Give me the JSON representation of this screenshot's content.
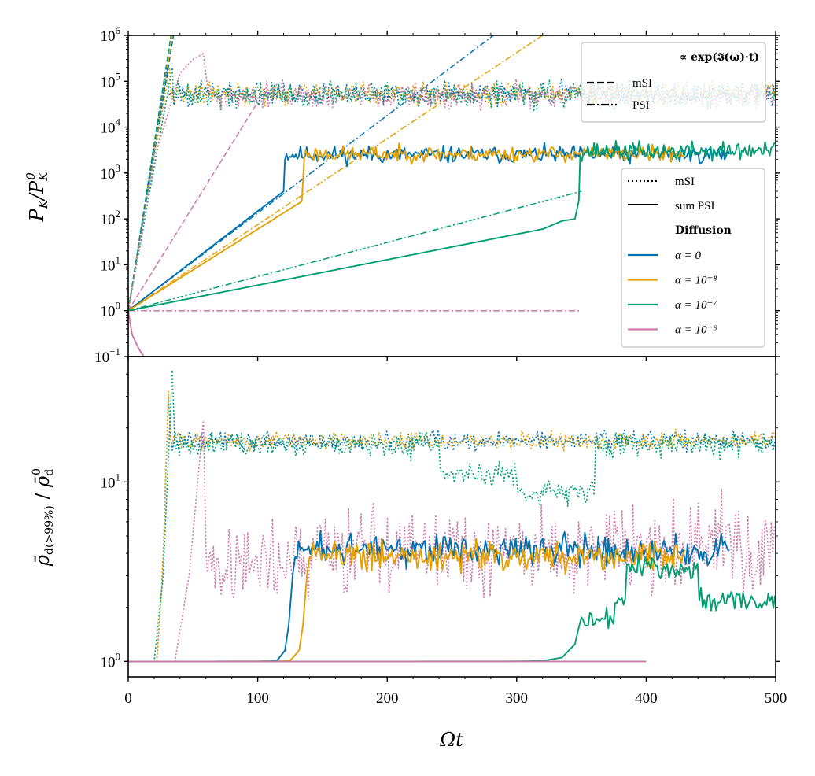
{
  "colors": {
    "alpha0": "#0072b2",
    "alpha1e-8": "#e69f00",
    "alpha1e-7": "#009e73",
    "alpha1e-6": "#cc79a7"
  },
  "chart_data": [
    {
      "id": "top",
      "type": "line",
      "ylabel": "P_K / P_K^0",
      "yscale": "log",
      "xlim": [
        0,
        500
      ],
      "ylim": [
        0.1,
        1000000
      ],
      "y_ticks": [
        {
          "value": 0.1,
          "base": "10",
          "exp": "−1"
        },
        {
          "value": 1,
          "base": "10",
          "exp": "0"
        },
        {
          "value": 10,
          "base": "10",
          "exp": "1"
        },
        {
          "value": 100,
          "base": "10",
          "exp": "2"
        },
        {
          "value": 1000,
          "base": "10",
          "exp": "3"
        },
        {
          "value": 10000,
          "base": "10",
          "exp": "4"
        },
        {
          "value": 100000,
          "base": "10",
          "exp": "5"
        },
        {
          "value": 1000000,
          "base": "10",
          "exp": "6"
        }
      ],
      "series": [
        {
          "name": "sum PSI, α = 0",
          "color_key": "alpha0",
          "style": "solid",
          "kind": "psi",
          "growth_end": [
            120,
            400
          ],
          "sat": 2500,
          "sat_spread": 0.55,
          "t_end": 465,
          "seed": 11
        },
        {
          "name": "sum PSI, α = 10^-8",
          "color_key": "alpha1e-8",
          "style": "solid",
          "kind": "psi",
          "growth_end": [
            135,
            250
          ],
          "sat": 2600,
          "sat_spread": 0.5,
          "t_end": 430,
          "seed": 23
        },
        {
          "name": "sum PSI, α = 10^-7",
          "color_key": "alpha1e-7",
          "style": "solid",
          "kind": "psi",
          "growth_end": [
            320,
            60
          ],
          "bump": [
            [
              335,
              90
            ],
            [
              345,
              100
            ],
            [
              348,
              250
            ]
          ],
          "sat": 3000,
          "sat_spread": 0.6,
          "t_end": 500,
          "seed": 37
        },
        {
          "name": "sum PSI, α = 10^-6",
          "color_key": "alpha1e-6",
          "style": "solid",
          "kind": "decay",
          "points": [
            [
              0,
              1
            ],
            [
              3,
              0.3
            ],
            [
              8,
              0.15
            ],
            [
              12,
              0.1
            ]
          ]
        },
        {
          "name": "mSI, α = 0",
          "color_key": "alpha0",
          "style": "dotted",
          "kind": "msi",
          "start": 30,
          "sat": 55000,
          "sat_spread": 0.7,
          "t_end": 500,
          "seed": 101
        },
        {
          "name": "mSI, α = 10^-8",
          "color_key": "alpha1e-8",
          "style": "dotted",
          "kind": "msi",
          "start": 32,
          "sat": 55000,
          "sat_spread": 0.7,
          "t_end": 500,
          "seed": 131
        },
        {
          "name": "mSI, α = 10^-7",
          "color_key": "alpha1e-7",
          "style": "dotted",
          "kind": "msi",
          "start": 34,
          "sat": 50000,
          "sat_spread": 0.8,
          "t_end": 500,
          "seed": 161
        },
        {
          "name": "mSI, α = 10^-6",
          "color_key": "alpha1e-6",
          "style": "dotted",
          "kind": "msi6",
          "rise": [
            [
              0,
              1
            ],
            [
              20,
              2000
            ],
            [
              40,
              150000
            ],
            [
              50,
              300000
            ],
            [
              58,
              400000
            ]
          ],
          "sat": 50000,
          "sat_spread": 0.8,
          "t_end": 500,
          "seed": 191
        }
      ],
      "fits": [
        {
          "name": "mSI fit α = 0",
          "color_key": "alpha0",
          "style": "dashed",
          "points": [
            [
              0,
              1
            ],
            [
              35,
              1000000
            ]
          ]
        },
        {
          "name": "mSI fit α = 10^-8",
          "color_key": "alpha1e-8",
          "style": "dashed",
          "points": [
            [
              0,
              1
            ],
            [
              34,
              1000000
            ]
          ]
        },
        {
          "name": "mSI fit α = 10^-7",
          "color_key": "alpha1e-7",
          "style": "dashed",
          "points": [
            [
              0,
              1
            ],
            [
              33,
              1000000
            ]
          ]
        },
        {
          "name": "mSI fit α = 10^-6",
          "color_key": "alpha1e-6",
          "style": "dashed",
          "points": [
            [
              0,
              1
            ],
            [
              100,
              35000
            ]
          ]
        },
        {
          "name": "PSI fit α = 0",
          "color_key": "alpha0",
          "style": "dashdot",
          "points": [
            [
              0,
              1
            ],
            [
              282,
              1000000
            ]
          ]
        },
        {
          "name": "PSI fit α = 10^-8",
          "color_key": "alpha1e-8",
          "style": "dashdot",
          "points": [
            [
              0,
              1
            ],
            [
              320,
              1000000
            ]
          ]
        },
        {
          "name": "PSI fit α = 10^-7",
          "color_key": "alpha1e-7",
          "style": "dashdot",
          "points": [
            [
              0,
              1
            ],
            [
              350,
              400
            ]
          ]
        },
        {
          "name": "PSI fit α = 10^-6",
          "color_key": "alpha1e-6",
          "style": "dashdot",
          "points": [
            [
              0,
              1
            ],
            [
              350,
              1
            ]
          ]
        }
      ]
    },
    {
      "id": "bottom",
      "type": "line",
      "ylabel": "ρ̄_d(>99%) / ρ̄_d^0",
      "yscale": "log",
      "xlim": [
        0,
        500
      ],
      "ylim": [
        0.82,
        50
      ],
      "xlabel": "Ωt",
      "x_ticks": [
        0,
        100,
        200,
        300,
        400,
        500
      ],
      "y_ticks": [
        {
          "value": 1,
          "base": "10",
          "exp": "0"
        },
        {
          "value": 10,
          "base": "10",
          "exp": "1"
        }
      ],
      "series": [
        {
          "name": "sum PSI, α = 0",
          "color_key": "alpha0",
          "style": "solid",
          "kind": "rise",
          "rise_t": 125,
          "sat": 4.2,
          "sat_spread": 0.12,
          "t_end": 465,
          "seed": 211
        },
        {
          "name": "sum PSI, α = 10^-8",
          "color_key": "alpha1e-8",
          "style": "solid",
          "kind": "rise",
          "rise_t": 136,
          "sat": 3.9,
          "sat_spread": 0.12,
          "t_end": 430,
          "seed": 223
        },
        {
          "name": "sum PSI, α = 10^-7",
          "color_key": "alpha1e-7",
          "style": "solid",
          "kind": "rise7",
          "rise_t": 345,
          "t_end": 500,
          "seed": 239
        },
        {
          "name": "sum PSI, α = 10^-6",
          "color_key": "alpha1e-6",
          "style": "solid",
          "kind": "flat",
          "t_end": 400
        },
        {
          "name": "mSI, α = 0",
          "color_key": "alpha0",
          "style": "dotted",
          "kind": "spike",
          "start": 22,
          "peak_t": 31,
          "peak": 30,
          "sat": 17,
          "sat_spread": 0.08,
          "t_end": 500,
          "seed": 307
        },
        {
          "name": "mSI, α = 10^-8",
          "color_key": "alpha1e-8",
          "style": "dotted",
          "kind": "spike",
          "start": 22,
          "peak_t": 31,
          "peak": 32,
          "sat": 17,
          "sat_spread": 0.07,
          "t_end": 500,
          "seed": 331
        },
        {
          "name": "mSI, α = 10^-7",
          "color_key": "alpha1e-7",
          "style": "dotted",
          "kind": "spike7",
          "start": 20,
          "peak_t": 34,
          "peak": 42,
          "sat": 16,
          "sat_spread": 0.1,
          "t_end": 500,
          "seed": 353
        },
        {
          "name": "mSI, α = 10^-6",
          "color_key": "alpha1e-6",
          "style": "dotted",
          "kind": "spike6",
          "start": 36,
          "peak_t": 58,
          "peak": 22,
          "sat": 4.2,
          "sat_spread": 0.35,
          "t_end": 500,
          "seed": 379
        }
      ]
    }
  ],
  "legend_fit": {
    "title": "∝ exp(𝕴(ω)·t)",
    "items": [
      {
        "label": "mSI",
        "style": "dashed"
      },
      {
        "label": "PSI",
        "style": "dashdot"
      }
    ]
  },
  "legend_main": {
    "items": [
      {
        "label": "mSI",
        "style": "dotted"
      },
      {
        "label": "sum PSI",
        "style": "solid"
      }
    ],
    "title": "Diffusion",
    "alphas": [
      {
        "label": "α = 0",
        "color_key": "alpha0"
      },
      {
        "label": "α = 10⁻⁸",
        "color_key": "alpha1e-8"
      },
      {
        "label": "α = 10⁻⁷",
        "color_key": "alpha1e-7"
      },
      {
        "label": "α = 10⁻⁶",
        "color_key": "alpha1e-6"
      }
    ]
  },
  "labels": {
    "top_ylabel_main": "P",
    "top_ylabel_sub": "K",
    "top_ylabel_sup": "0",
    "bottom_ylabel_main": "ρ̄",
    "bottom_ylabel_sub": "d(>99%)",
    "bottom_ylabel_sup": "0",
    "bottom_ylabel_sub2": "d",
    "xlabel": "Ωt"
  }
}
